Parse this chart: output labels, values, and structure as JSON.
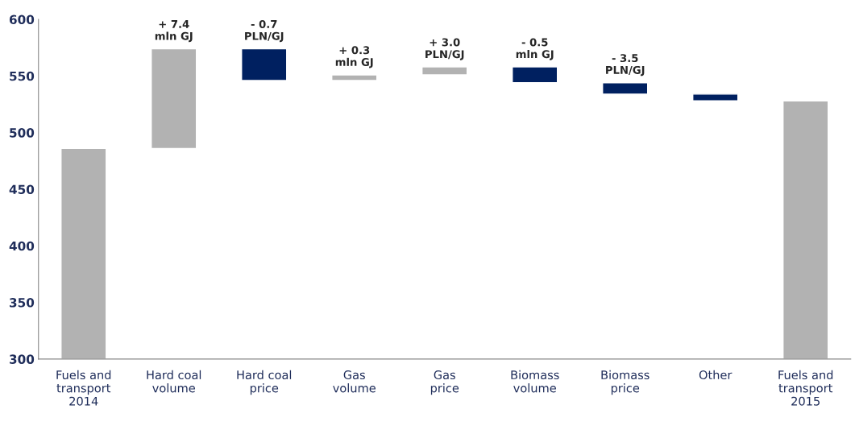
{
  "chart_data": {
    "type": "bar",
    "categories": [
      "Fuels and\ntransport\n2014",
      "Hard coal\nvolume",
      "Hard coal\nprice",
      "Gas\nvolume",
      "Gas\nprice",
      "Biomass\nvolume",
      "Biomass\nprice",
      "Other",
      "Fuels and\ntransport\n2015"
    ],
    "base": [
      300,
      486,
      574,
      546,
      551,
      558,
      544,
      534,
      300
    ],
    "values": [
      186,
      88,
      -28,
      5,
      7,
      -14,
      -10,
      -6,
      228
    ],
    "colors": [
      "#b2b2b2",
      "#b2b2b2",
      "#002060",
      "#b2b2b2",
      "#b2b2b2",
      "#002060",
      "#002060",
      "#002060",
      "#b2b2b2"
    ],
    "ylim": [
      300,
      600
    ],
    "yticks": [
      300,
      350,
      400,
      450,
      500,
      550,
      600
    ],
    "grid": false,
    "annotations": [
      {
        "text": "+ 7.4\nmln GJ",
        "x": "Hard coal\nvolume",
        "y": 574
      },
      {
        "text": "- 0.7\nPLN/GJ",
        "x": "Hard coal\nprice",
        "y": 574
      },
      {
        "text": "+ 0.3\nmln GJ",
        "x": "Gas\nvolume",
        "y": 551
      },
      {
        "text": "+ 3.0\nPLN/GJ",
        "x": "Gas\nprice",
        "y": 558
      },
      {
        "text": "- 0.5\nmln GJ",
        "x": "Biomass\nvolume",
        "y": 558
      },
      {
        "text": "- 3.5\nPLN/GJ",
        "x": "Biomass\nprice",
        "y": 544
      }
    ]
  }
}
